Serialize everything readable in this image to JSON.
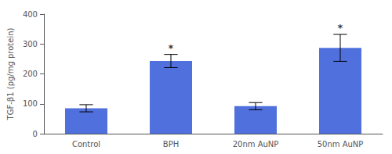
{
  "chart_data": {
    "type": "bar",
    "categories": [
      "Control",
      "BPH",
      "20nm AuNP",
      "50nm AuNP"
    ],
    "values": [
      85,
      243,
      92,
      287
    ],
    "errors": [
      12,
      22,
      12,
      45
    ],
    "ylabel": "TGF-β1 (pg/mg protein)",
    "ylim": [
      0,
      400
    ],
    "yticks": [
      0,
      100,
      200,
      300,
      400
    ],
    "annotations": [
      {
        "x": "BPH",
        "text": "*"
      },
      {
        "x": "50nm AuNP",
        "text": "*"
      }
    ],
    "grid": false
  }
}
